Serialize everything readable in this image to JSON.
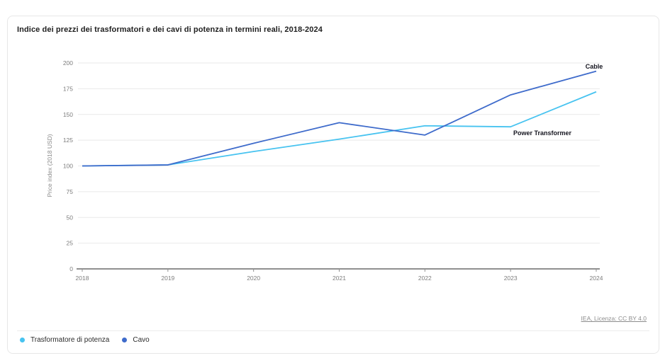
{
  "header": {
    "title": "Indice dei prezzi dei trasformatori e dei cavi di potenza in termini reali, 2018-2024"
  },
  "chart_data": {
    "type": "line",
    "title": "Indice dei prezzi dei trasformatori e dei cavi di potenza in termini reali, 2018-2024",
    "xlabel": "",
    "ylabel": "Price index (2018 USD)",
    "ylim": [
      0,
      200
    ],
    "yticks": [
      0,
      25,
      50,
      75,
      100,
      125,
      150,
      175,
      200
    ],
    "categories": [
      "2018",
      "2019",
      "2020",
      "2021",
      "2022",
      "2023",
      "2024"
    ],
    "grid": "horizontal",
    "legend_position": "bottom-left",
    "series": [
      {
        "name": "Trasformatore di potenza",
        "annotation": "Power Transformer",
        "color": "#47c3f0",
        "values": [
          100,
          101,
          114,
          126,
          139,
          138,
          172
        ]
      },
      {
        "name": "Cavo",
        "annotation": "Cable",
        "color": "#3e6bcb",
        "values": [
          100,
          101,
          122,
          142,
          130,
          169,
          192
        ]
      }
    ]
  },
  "footer": {
    "attribution": "IEA, Licenza: CC BY 4.0"
  },
  "colors": {
    "grid": "#e9e9e9",
    "axis": "#909090",
    "tick_text": "#7d7d7d",
    "annotation_text": "#15151f"
  }
}
